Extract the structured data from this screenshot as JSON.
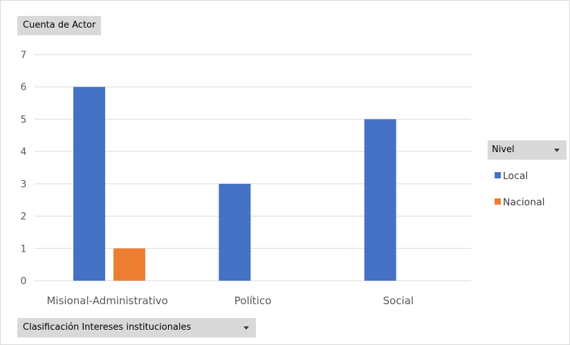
{
  "chart_data": {
    "type": "bar",
    "title": "",
    "values_field": "Cuenta de Actor",
    "axis_field": "Clasificación Intereses  institucionales",
    "legend_title": "Nivel",
    "categories": [
      "Misional-Administrativo",
      "Político",
      "Social"
    ],
    "series": [
      {
        "name": "Local",
        "values": [
          6,
          3,
          5
        ],
        "color": "#4472C4"
      },
      {
        "name": "Nacional",
        "values": [
          1,
          null,
          null
        ],
        "color": "#ED7D31"
      }
    ],
    "ylim": [
      0,
      7
    ],
    "yticks": [
      "0",
      "1",
      "2",
      "3",
      "4",
      "5",
      "6",
      "7"
    ],
    "grid": true,
    "legend_position": "right"
  }
}
